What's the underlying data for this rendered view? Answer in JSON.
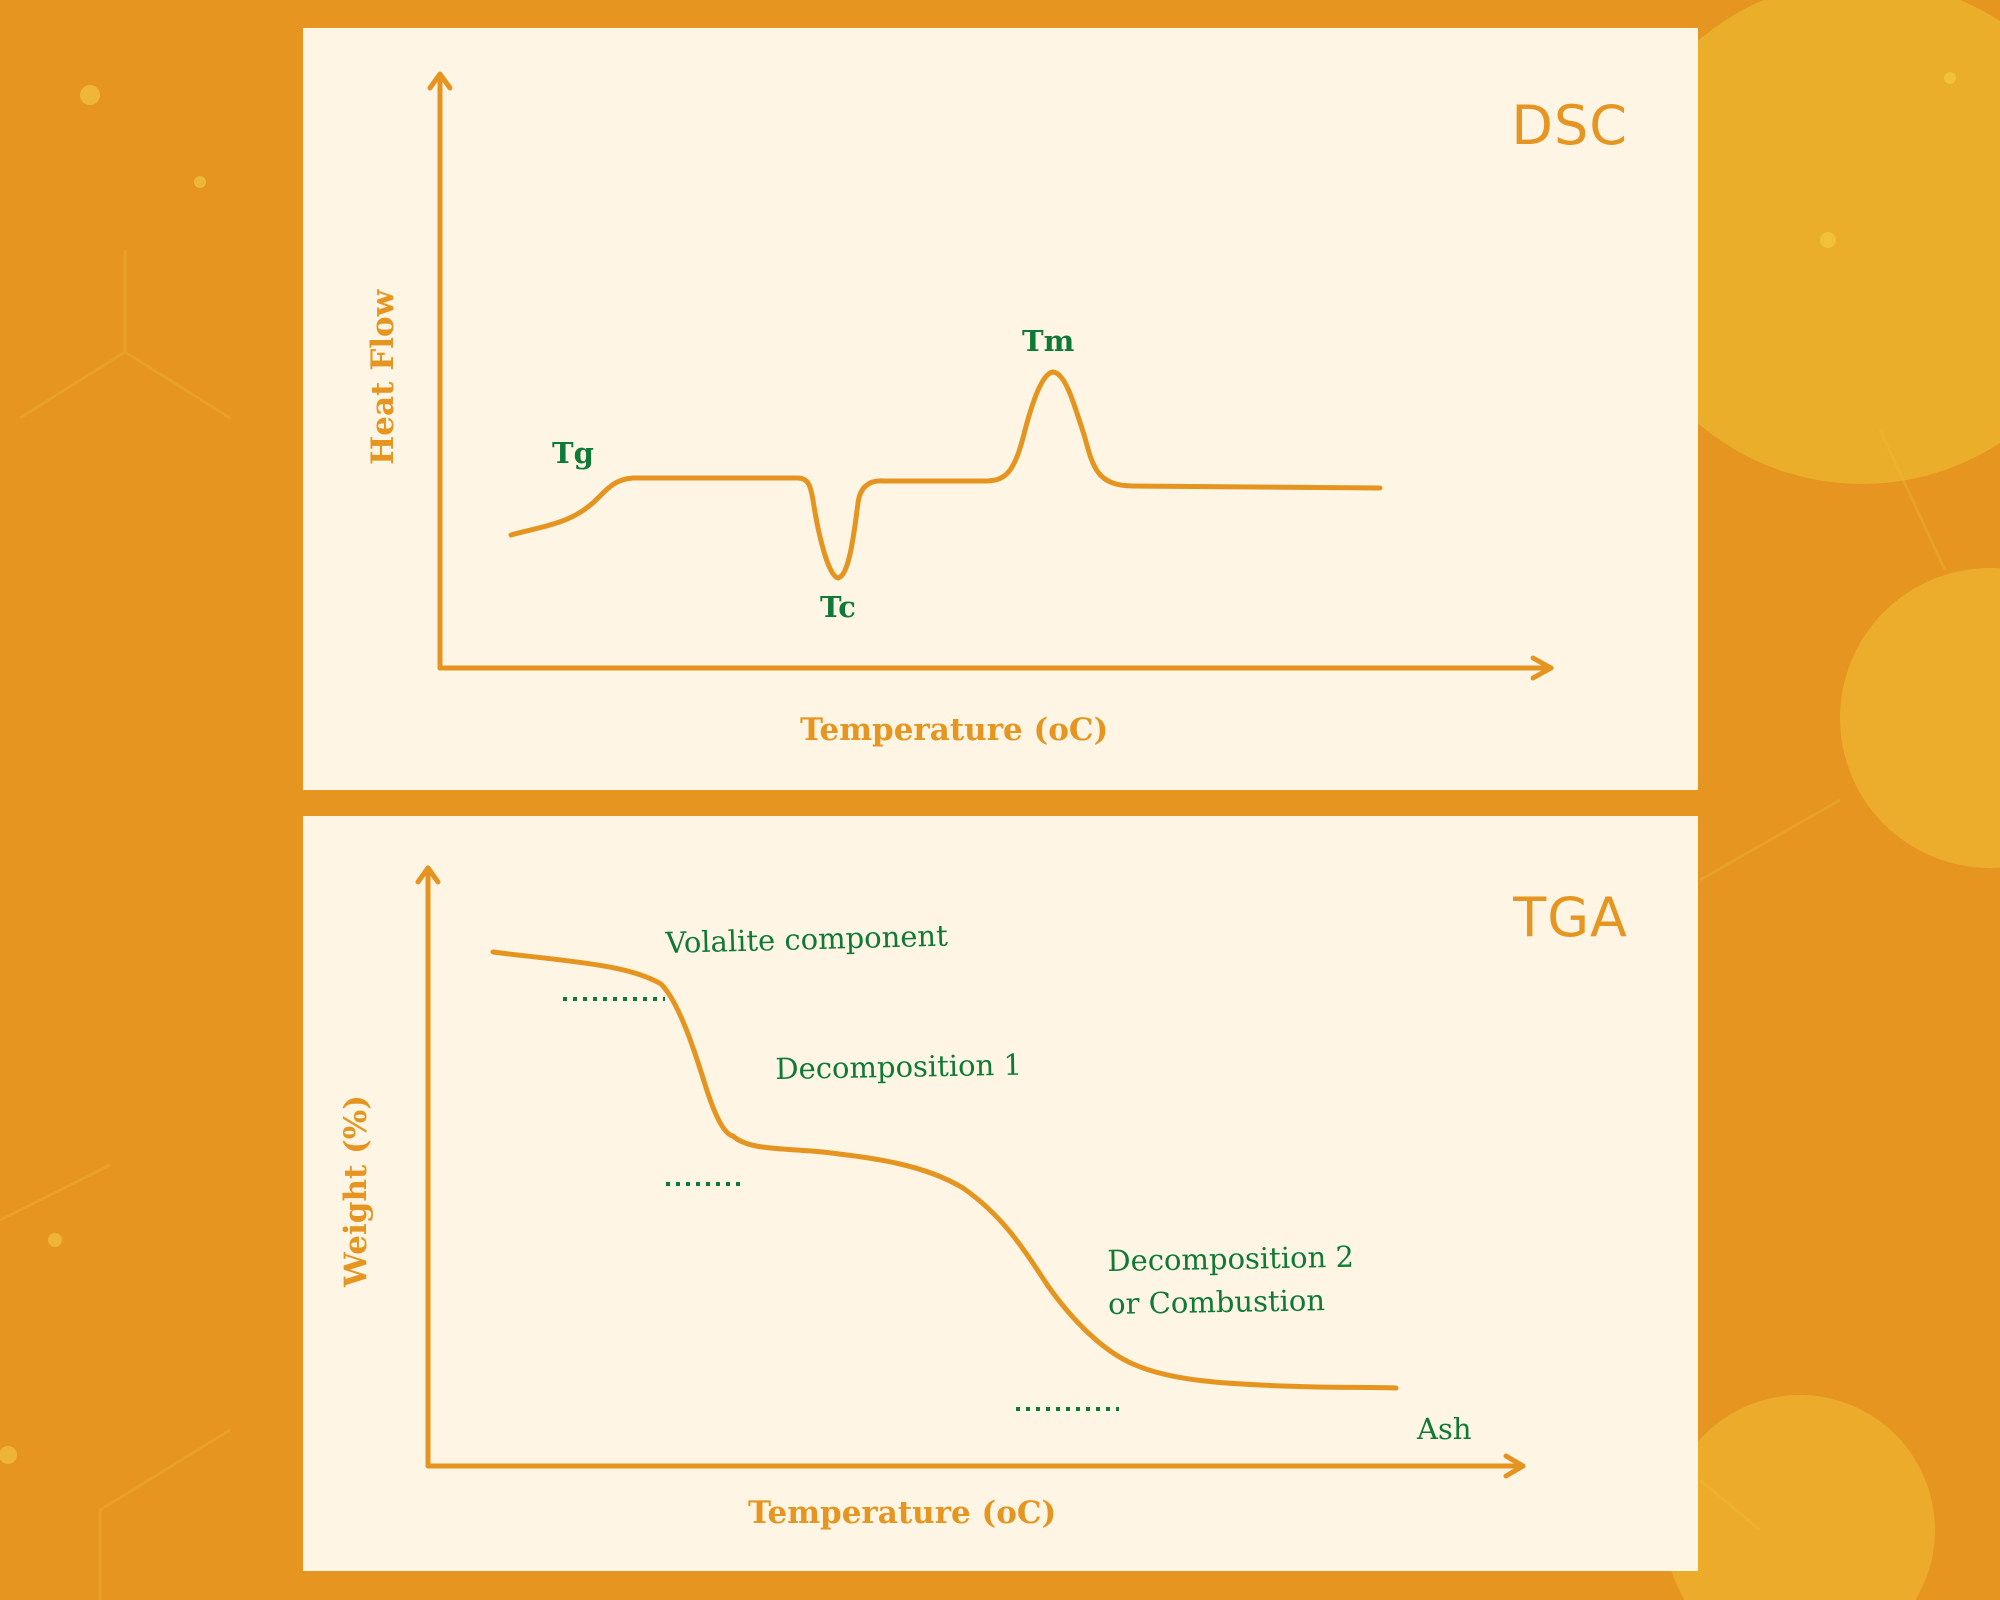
{
  "colors": {
    "background": "#E59520",
    "panel": "#FEF5E4",
    "curve": "#E5951F",
    "annotation": "#0F7A35"
  },
  "dsc": {
    "title": "DSC",
    "xlabel": "Temperature (oC)",
    "ylabel": "Heat Flow",
    "annotations": {
      "tg": "Tg",
      "tc": "Tc",
      "tm": "Tm"
    }
  },
  "tga": {
    "title": "TGA",
    "xlabel": "Temperature (oC)",
    "ylabel": "Weight (%)",
    "annotations": {
      "volatile": "Volalite component",
      "decomp1": "Decomposition 1",
      "decomp2_line1": "Decomposition 2",
      "decomp2_line2": "or Combustion",
      "ash": "Ash"
    }
  }
}
